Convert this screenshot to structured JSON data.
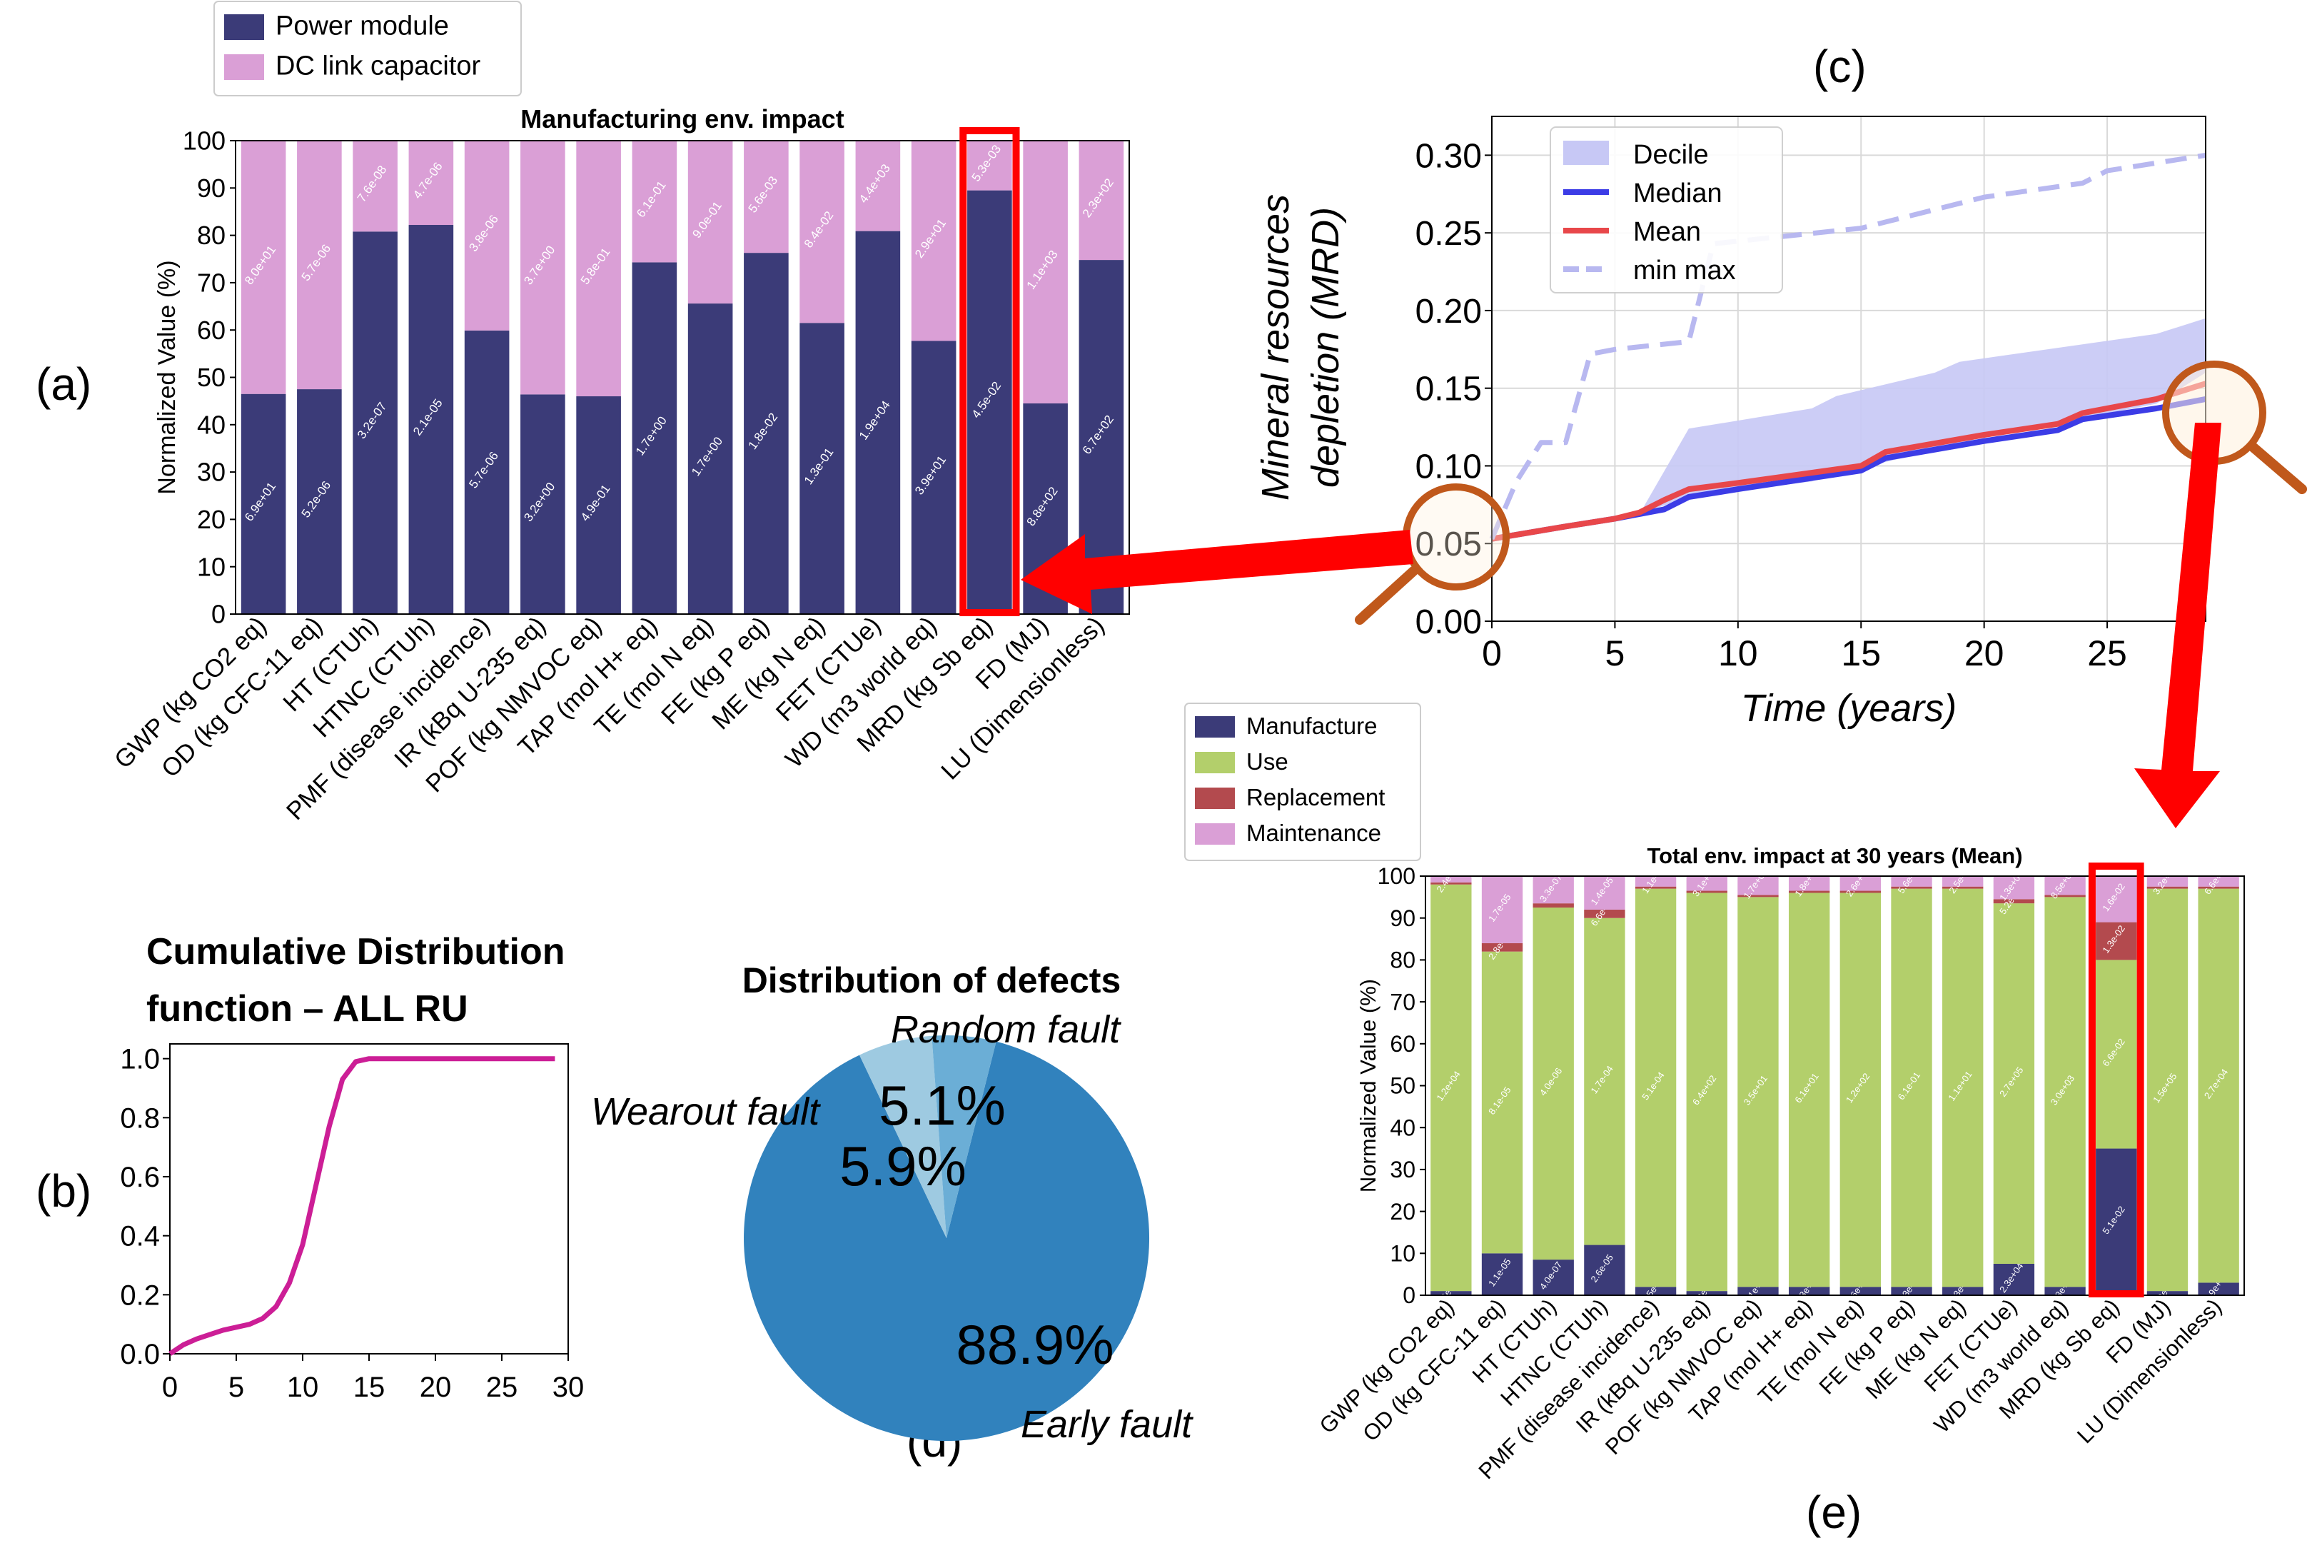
{
  "labels": {
    "a": "(a)",
    "b": "(b)",
    "c": "(c)",
    "d": "(d)",
    "e": "(e)"
  },
  "colors": {
    "power_module": "#3b3b78",
    "dc_link": "#da9fd6",
    "manufacture": "#3b3b78",
    "use": "#b3cf6b",
    "replacement": "#b34a4e",
    "maintenance": "#da9fd6",
    "decile": "#c7c8f5",
    "median": "#3c3ce6",
    "mean": "#e8474a",
    "minmax": "#b8b8f0",
    "cdf": "#cc1e96",
    "highlight": "#ff0000",
    "magnifier": "#c0581b",
    "pie_early": "#3182bd",
    "pie_wearout": "#9ecae1",
    "pie_random": "#6baed6"
  },
  "chart_data": [
    {
      "id": "a",
      "type": "bar",
      "stacked": true,
      "title": "Manufacturing env. impact",
      "ylabel": "Normalized Value (%)",
      "ylim": [
        0,
        100
      ],
      "yticks": [
        0,
        10,
        20,
        30,
        40,
        50,
        60,
        70,
        80,
        90,
        100
      ],
      "categories": [
        "GWP (kg CO2 eq)",
        "OD (kg CFC-11 eq)",
        "HT (CTUh)",
        "HTNC (CTUh)",
        "PMF (disease incidence)",
        "IR (kBq U-235 eq)",
        "POF (kg NMVOC eq)",
        "TAP (mol H+ eq)",
        "TE (mol N eq)",
        "FE (kg P eq)",
        "ME (kg N eq)",
        "FET (CTUe)",
        "WD (m3 world eq)",
        "MRD (kg Sb eq)",
        "FD (MJ)",
        "LU (Dimensionless)"
      ],
      "legend_position": "above-left",
      "highlight": "MRD (kg Sb eq)",
      "series": [
        {
          "name": "Power module",
          "values": [
            46.5,
            47.5,
            80.8,
            82.2,
            59.9,
            46.4,
            46.0,
            74.3,
            65.6,
            76.3,
            61.5,
            80.9,
            57.7,
            89.5,
            44.5,
            74.8
          ],
          "labels": [
            "6.9e+01",
            "5.2e-06",
            "3.2e-07",
            "2.1e-05",
            "5.7e-06",
            "3.2e+00",
            "4.9e-01",
            "1.7e+00",
            "1.7e+00",
            "1.8e-02",
            "1.3e-01",
            "1.9e+04",
            "3.9e+01",
            "4.5e-02",
            "8.8e+02",
            "6.7e+02"
          ]
        },
        {
          "name": "DC link capacitor",
          "values": [
            53.5,
            52.5,
            19.2,
            17.8,
            40.1,
            53.6,
            54.0,
            25.7,
            34.4,
            23.7,
            38.5,
            19.1,
            42.3,
            10.5,
            55.5,
            25.2
          ],
          "labels": [
            "8.0e+01",
            "5.7e-06",
            "7.6e-08",
            "4.7e-06",
            "3.8e-06",
            "3.7e+00",
            "5.8e-01",
            "6.1e-01",
            "9.0e-01",
            "5.6e-03",
            "8.4e-02",
            "4.4e+03",
            "2.9e+01",
            "5.3e-03",
            "1.1e+03",
            "2.3e+02"
          ]
        }
      ]
    },
    {
      "id": "b",
      "type": "line",
      "title": "Cumulative Distribution function – ALL RU",
      "xlim": [
        0,
        30
      ],
      "ylim": [
        0,
        1.05
      ],
      "xticks": [
        0,
        5,
        10,
        15,
        20,
        25,
        30
      ],
      "yticks": [
        "0.0",
        "0.2",
        "0.4",
        "0.6",
        "0.8",
        "1.0"
      ],
      "x": [
        0,
        1,
        2,
        3,
        4,
        5,
        6,
        7,
        8,
        9,
        10,
        11,
        12,
        13,
        14,
        15,
        16,
        20,
        25,
        29
      ],
      "y": [
        0.0,
        0.03,
        0.05,
        0.065,
        0.08,
        0.09,
        0.1,
        0.12,
        0.16,
        0.24,
        0.37,
        0.57,
        0.77,
        0.93,
        0.99,
        1.0,
        1.0,
        1.0,
        1.0,
        1.0
      ]
    },
    {
      "id": "c",
      "type": "line",
      "xlabel": "Time (years)",
      "ylabel": "Mineral resources depletion (MRD)",
      "xlim": [
        0,
        29
      ],
      "ylim": [
        0,
        0.325
      ],
      "xticks": [
        0,
        5,
        10,
        15,
        20,
        25
      ],
      "yticks": [
        "0.00",
        "0.05",
        "0.10",
        "0.15",
        "0.20",
        "0.25",
        "0.30"
      ],
      "legend_position": "top-left",
      "grid": true,
      "series": [
        {
          "name": "Decile",
          "kind": "band",
          "x": [
            0,
            6,
            8,
            13,
            14,
            18,
            19,
            27,
            28,
            29
          ],
          "lower": [
            0.053,
            0.069,
            0.08,
            0.09,
            0.095,
            0.11,
            0.115,
            0.14,
            0.15,
            0.16
          ],
          "upper": [
            0.053,
            0.069,
            0.124,
            0.137,
            0.145,
            0.16,
            0.167,
            0.185,
            0.19,
            0.195
          ]
        },
        {
          "name": "Median",
          "kind": "line",
          "x": [
            0,
            3,
            5,
            6,
            7,
            8,
            10,
            15,
            16,
            20,
            23,
            24,
            27,
            28,
            29
          ],
          "y": [
            0.053,
            0.061,
            0.066,
            0.069,
            0.072,
            0.08,
            0.085,
            0.097,
            0.105,
            0.116,
            0.123,
            0.13,
            0.137,
            0.14,
            0.143
          ]
        },
        {
          "name": "Mean",
          "kind": "line",
          "x": [
            0,
            3,
            5,
            6,
            7,
            8,
            10,
            15,
            16,
            20,
            23,
            24,
            27,
            28,
            29
          ],
          "y": [
            0.053,
            0.061,
            0.066,
            0.07,
            0.078,
            0.085,
            0.089,
            0.1,
            0.109,
            0.12,
            0.127,
            0.134,
            0.143,
            0.148,
            0.153
          ]
        },
        {
          "name": "min max",
          "kind": "dashed",
          "x": [
            0,
            1,
            2,
            3,
            4,
            5,
            8,
            9,
            15,
            16,
            20,
            24,
            25,
            29
          ],
          "y": [
            0.053,
            0.09,
            0.115,
            0.115,
            0.172,
            0.175,
            0.18,
            0.243,
            0.253,
            0.257,
            0.273,
            0.282,
            0.29,
            0.3
          ]
        }
      ]
    },
    {
      "id": "d",
      "type": "pie",
      "title": "Distribution of defects",
      "slices": [
        {
          "name": "Early fault",
          "value": 88.9,
          "label": "88.9%"
        },
        {
          "name": "Wearout fault",
          "value": 5.9,
          "label": "5.9%"
        },
        {
          "name": "Random fault",
          "value": 5.1,
          "label": "5.1%"
        }
      ]
    },
    {
      "id": "e",
      "type": "bar",
      "stacked": true,
      "title": "Total env. impact at 30 years (Mean)",
      "ylabel": "Normalized Value (%)",
      "ylim": [
        0,
        100
      ],
      "yticks": [
        0,
        10,
        20,
        30,
        40,
        50,
        60,
        70,
        80,
        90,
        100
      ],
      "categories": [
        "GWP (kg CO2 eq)",
        "OD (kg CFC-11 eq)",
        "HT (CTUh)",
        "HTNC (CTUh)",
        "PMF (disease incidence)",
        "IR (kBq U-235 eq)",
        "POF (kg NMVOC eq)",
        "TAP (mol H+ eq)",
        "TE (mol N eq)",
        "FE (kg P eq)",
        "ME (kg N eq)",
        "FET (CTUe)",
        "WD (m3 world eq)",
        "MRD (kg Sb eq)",
        "FD (MJ)",
        "LU (Dimensionless)"
      ],
      "legend_position": "above-left",
      "highlight": "MRD (kg Sb eq)",
      "series": [
        {
          "name": "Manufacture",
          "values": [
            1.0,
            10.0,
            8.5,
            12.0,
            2.0,
            1.0,
            2.0,
            2.0,
            2.0,
            2.0,
            2.0,
            7.5,
            2.0,
            35.0,
            1.0,
            3.0
          ],
          "labels": [
            "1.5e+02",
            "1.1e-05",
            "4.0e-07",
            "2.6e-05",
            "9.5e-06",
            "6.8e+00",
            "1.1e+00",
            "2.3e+00",
            "2.6e+00",
            "2.3e-02",
            "2.3e-01",
            "2.3e+04",
            "6.8e+01",
            "5.1e-02",
            "2.0e+03",
            "8.9e+02"
          ]
        },
        {
          "name": "Use",
          "values": [
            97.0,
            72.0,
            84.0,
            78.0,
            95.0,
            95.0,
            93.0,
            94.0,
            94.0,
            95.0,
            95.0,
            86.0,
            93.0,
            45.0,
            96.0,
            94.0
          ],
          "labels": [
            "1.2e+04",
            "8.1e-05",
            "4.0e-06",
            "1.7e-04",
            "5.1e-04",
            "6.4e+02",
            "3.5e+01",
            "6.1e+01",
            "1.2e+02",
            "6.1e-01",
            "1.1e+01",
            "2.7e+05",
            "3.0e+03",
            "6.6e-02",
            "1.5e+05",
            "2.7e+04"
          ]
        },
        {
          "name": "Replacement",
          "values": [
            0.5,
            2.0,
            1.0,
            2.0,
            0.5,
            0.5,
            0.5,
            0.5,
            0.5,
            0.5,
            0.5,
            1.0,
            0.5,
            9.0,
            0.5,
            0.5
          ],
          "labels": [
            "",
            "2.8e-06",
            "",
            "6.6e-06",
            "",
            "",
            "",
            "",
            "",
            "",
            "",
            "5.2e+03",
            "",
            "1.3e-02",
            "",
            ""
          ]
        },
        {
          "name": "Maintenance",
          "values": [
            1.5,
            16.0,
            6.5,
            8.0,
            2.5,
            3.5,
            4.5,
            3.5,
            3.5,
            2.5,
            2.5,
            5.5,
            4.5,
            11.0,
            2.5,
            2.5
          ],
          "labels": [
            "2.4e+02",
            "1.7e-05",
            "3.3e-07",
            "1.4e-05",
            "1.1e-05",
            "3.1e+01",
            "1.7e+00",
            "1.8e+00",
            "2.6e+00",
            "5.6e-03",
            "2.5e-01",
            "1.3e+04",
            "8.5e+01",
            "1.6e-02",
            "3.2e+03",
            "6.6e+02"
          ]
        }
      ]
    }
  ],
  "pie_labels": {
    "early": "Early fault",
    "wearout": "Wearout fault",
    "random": "Random fault"
  }
}
